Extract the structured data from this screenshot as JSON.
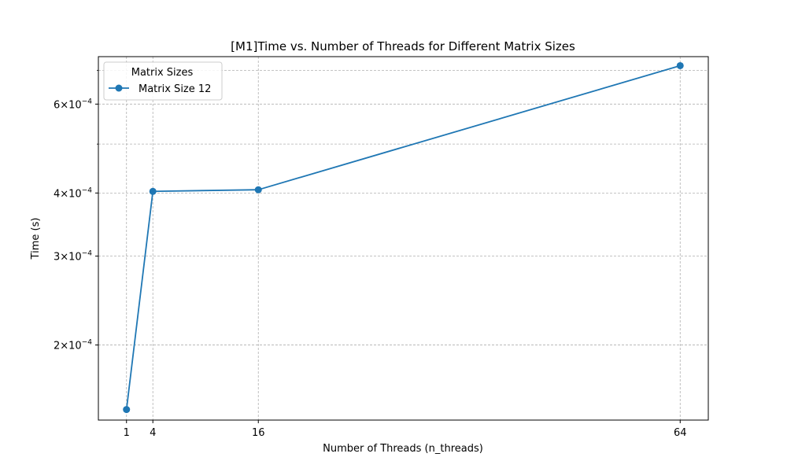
{
  "chart_data": {
    "type": "line",
    "title": "[M1]Time vs. Number of Threads for Different Matrix Sizes",
    "xlabel": "Number of Threads (n_threads)",
    "ylabel": "Time (s)",
    "x_scale": "linear",
    "y_scale": "log",
    "xlim": [
      -2.2,
      67.2
    ],
    "ylim": [
      0.000142,
      0.000745
    ],
    "x_ticks": [
      1,
      4,
      16,
      64
    ],
    "x_tick_labels": [
      "1",
      "4",
      "16",
      "64"
    ],
    "y_ticks": [
      0.0002,
      0.0003,
      0.0004,
      0.0006
    ],
    "y_tick_labels": [
      {
        "mantissa": "2",
        "exponent": "−4"
      },
      {
        "mantissa": "3",
        "exponent": "−4"
      },
      {
        "mantissa": "4",
        "exponent": "−4"
      },
      {
        "mantissa": "6",
        "exponent": "−4"
      }
    ],
    "y_minor_ticks": [
      0.0005,
      0.0007
    ],
    "grid": true,
    "legend": {
      "title": "Matrix Sizes",
      "placement": "top-left"
    },
    "series": [
      {
        "name": "Matrix Size 12",
        "color": "#1f77b4",
        "marker": "circle",
        "x": [
          1,
          4,
          16,
          64
        ],
        "y": [
          0.000149,
          0.000403,
          0.000406,
          0.000715
        ]
      }
    ]
  }
}
